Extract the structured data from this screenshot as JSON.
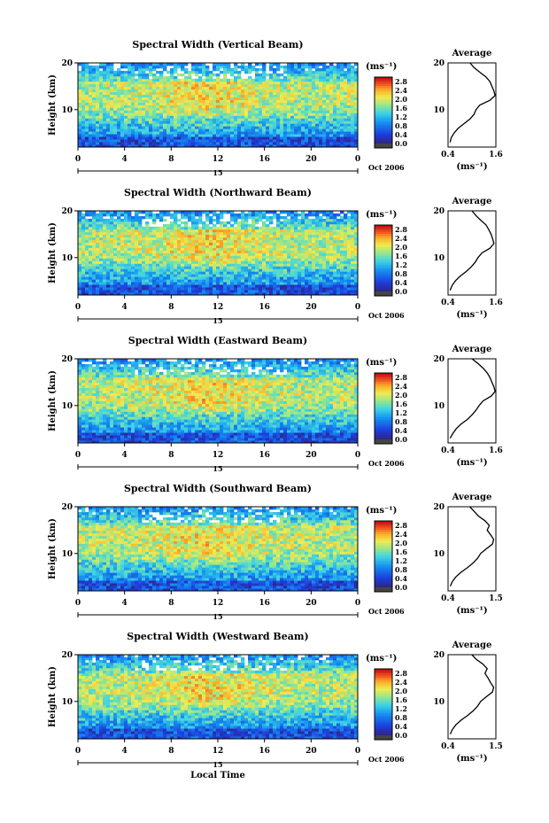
{
  "chart_data": [
    {
      "type": "heatmap",
      "title": "Spectral Width (Vertical Beam)",
      "ylabel": "Height (km)",
      "x_ticks": [
        "0",
        "4",
        "8",
        "12",
        "16",
        "20",
        "0"
      ],
      "y_ticks": [
        "20",
        "10"
      ],
      "xlim": [
        0,
        24
      ],
      "ylim": [
        2,
        20
      ],
      "date_tick": "15",
      "date_label": "Oct 2006",
      "colorbar": {
        "unit": "(ms⁻¹)",
        "ticks": [
          "2.8",
          "2.4",
          "2.0",
          "1.6",
          "1.2",
          "0.8",
          "0.4",
          "0.0"
        ],
        "range": [
          0,
          3.0
        ]
      },
      "profile": {
        "title": "Average",
        "xlabel": "(ms⁻¹)",
        "x_ticks": [
          "0.4",
          "1.6"
        ],
        "y_ticks": [
          "20",
          "10"
        ],
        "xlim": [
          0.4,
          1.6
        ],
        "ylim": [
          2,
          20
        ],
        "height": [
          3,
          4,
          5,
          6,
          7,
          8,
          9,
          10,
          11,
          12,
          13,
          14,
          15,
          16,
          17,
          18,
          19,
          20
        ],
        "value": [
          0.45,
          0.48,
          0.55,
          0.65,
          0.8,
          0.95,
          1.05,
          1.1,
          1.2,
          1.45,
          1.58,
          1.55,
          1.5,
          1.45,
          1.35,
          1.2,
          1.05,
          0.95
        ]
      }
    },
    {
      "type": "heatmap",
      "title": "Spectral Width (Northward Beam)",
      "ylabel": "Height (km)",
      "x_ticks": [
        "0",
        "4",
        "8",
        "12",
        "16",
        "20",
        "0"
      ],
      "y_ticks": [
        "20",
        "10"
      ],
      "xlim": [
        0,
        24
      ],
      "ylim": [
        2,
        20
      ],
      "date_tick": "15",
      "date_label": "Oct 2006",
      "colorbar": {
        "unit": "(ms⁻¹)",
        "ticks": [
          "2.8",
          "2.4",
          "2.0",
          "1.6",
          "1.2",
          "0.8",
          "0.4",
          "0.0"
        ],
        "range": [
          0,
          3.0
        ]
      },
      "profile": {
        "title": "Average",
        "xlabel": "(ms⁻¹)",
        "x_ticks": [
          "0.4",
          "1.6"
        ],
        "y_ticks": [
          "20",
          "10"
        ],
        "xlim": [
          0.4,
          1.6
        ],
        "ylim": [
          2,
          20
        ],
        "height": [
          3,
          4,
          5,
          6,
          7,
          8,
          9,
          10,
          11,
          12,
          13,
          14,
          15,
          16,
          17,
          18,
          19,
          20
        ],
        "value": [
          0.45,
          0.5,
          0.58,
          0.7,
          0.85,
          0.98,
          1.08,
          1.15,
          1.25,
          1.45,
          1.55,
          1.52,
          1.48,
          1.42,
          1.35,
          1.22,
          1.1,
          1.0
        ]
      }
    },
    {
      "type": "heatmap",
      "title": "Spectral Width (Eastward Beam)",
      "ylabel": "Height (km)",
      "x_ticks": [
        "0",
        "4",
        "8",
        "12",
        "16",
        "20",
        "0"
      ],
      "y_ticks": [
        "20",
        "10"
      ],
      "xlim": [
        0,
        24
      ],
      "ylim": [
        2,
        20
      ],
      "date_tick": "15",
      "date_label": "Oct 2006",
      "colorbar": {
        "unit": "(ms⁻¹)",
        "ticks": [
          "2.8",
          "2.4",
          "2.0",
          "1.6",
          "1.2",
          "0.8",
          "0.4",
          "0.0"
        ],
        "range": [
          0,
          3.0
        ]
      },
      "profile": {
        "title": "Average",
        "xlabel": "(ms⁻¹)",
        "x_ticks": [
          "0.4",
          "1.6"
        ],
        "y_ticks": [
          "20",
          "10"
        ],
        "xlim": [
          0.4,
          1.6
        ],
        "ylim": [
          2,
          20
        ],
        "height": [
          3,
          4,
          5,
          6,
          7,
          8,
          9,
          10,
          11,
          12,
          13,
          14,
          15,
          16,
          17,
          18,
          19,
          20
        ],
        "value": [
          0.45,
          0.52,
          0.6,
          0.72,
          0.88,
          1.0,
          1.1,
          1.18,
          1.28,
          1.48,
          1.58,
          1.55,
          1.5,
          1.45,
          1.38,
          1.28,
          1.15,
          1.0
        ]
      }
    },
    {
      "type": "heatmap",
      "title": "Spectral Width (Southward Beam)",
      "ylabel": "Height (km)",
      "x_ticks": [
        "0",
        "4",
        "8",
        "12",
        "16",
        "20",
        "0"
      ],
      "y_ticks": [
        "20",
        "10"
      ],
      "xlim": [
        0,
        24
      ],
      "ylim": [
        2,
        20
      ],
      "date_tick": "15",
      "date_label": "Oct 2006",
      "colorbar": {
        "unit": "(ms⁻¹)",
        "ticks": [
          "2.8",
          "2.4",
          "2.0",
          "1.6",
          "1.2",
          "0.8",
          "0.4",
          "0.0"
        ],
        "range": [
          0,
          3.0
        ]
      },
      "profile": {
        "title": "Average",
        "xlabel": "(ms⁻¹)",
        "x_ticks": [
          "0.4",
          "1.5"
        ],
        "y_ticks": [
          "20",
          "10"
        ],
        "xlim": [
          0.4,
          1.5
        ],
        "ylim": [
          2,
          20
        ],
        "height": [
          3,
          4,
          5,
          6,
          7,
          8,
          9,
          10,
          11,
          12,
          13,
          14,
          15,
          16,
          17,
          18,
          19,
          20
        ],
        "value": [
          0.45,
          0.5,
          0.58,
          0.7,
          0.85,
          0.98,
          1.08,
          1.15,
          1.28,
          1.42,
          1.45,
          1.38,
          1.3,
          1.35,
          1.25,
          1.1,
          1.0,
          0.9
        ]
      }
    },
    {
      "type": "heatmap",
      "title": "Spectral Width (Westward Beam)",
      "ylabel": "Height (km)",
      "xlabel": "Local Time",
      "x_ticks": [
        "0",
        "4",
        "8",
        "12",
        "16",
        "20",
        "0"
      ],
      "y_ticks": [
        "20",
        "10"
      ],
      "xlim": [
        0,
        24
      ],
      "ylim": [
        2,
        20
      ],
      "date_tick": "15",
      "date_label": "Oct 2006",
      "colorbar": {
        "unit": "(ms⁻¹)",
        "ticks": [
          "2.8",
          "2.4",
          "2.0",
          "1.6",
          "1.2",
          "0.8",
          "0.4",
          "0.0"
        ],
        "range": [
          0,
          3.0
        ]
      },
      "profile": {
        "title": "Average",
        "xlabel": "(ms⁻¹)",
        "x_ticks": [
          "0.4",
          "1.5"
        ],
        "y_ticks": [
          "20",
          "10"
        ],
        "xlim": [
          0.4,
          1.5
        ],
        "ylim": [
          2,
          20
        ],
        "height": [
          3,
          4,
          5,
          6,
          7,
          8,
          9,
          10,
          11,
          12,
          13,
          14,
          15,
          16,
          17,
          18,
          19,
          20
        ],
        "value": [
          0.45,
          0.5,
          0.58,
          0.7,
          0.85,
          0.98,
          1.08,
          1.15,
          1.28,
          1.42,
          1.45,
          1.38,
          1.32,
          1.25,
          1.3,
          1.2,
          1.05,
          0.95
        ]
      }
    }
  ]
}
